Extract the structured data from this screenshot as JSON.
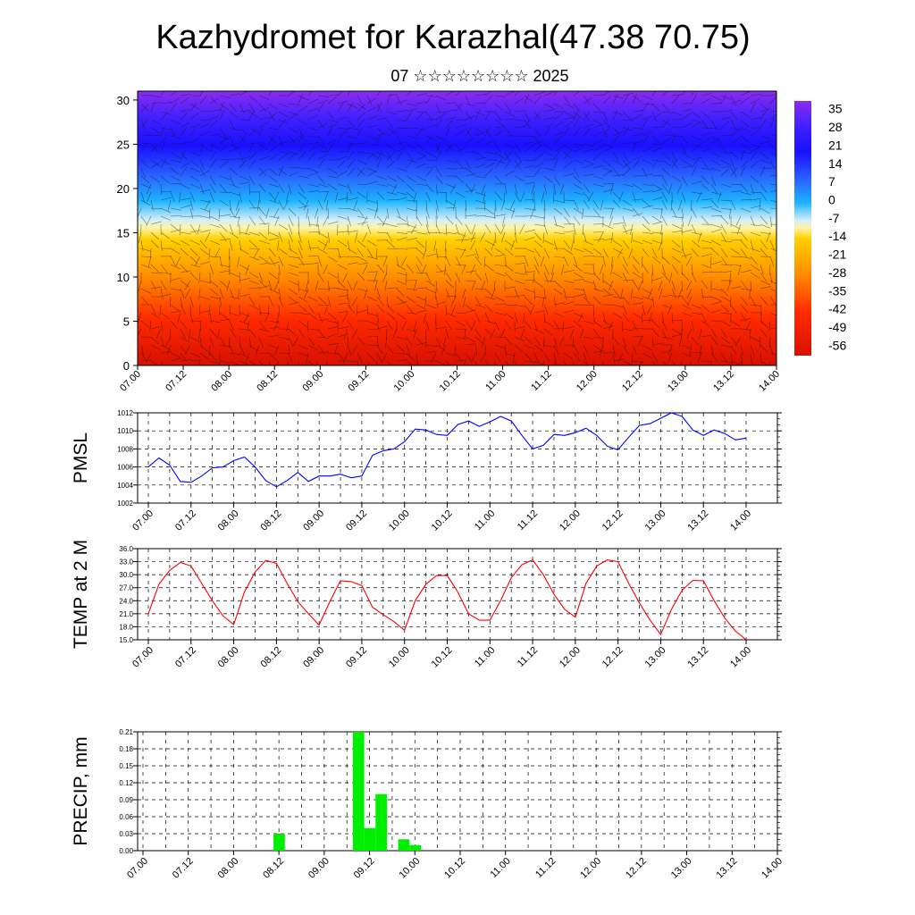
{
  "header": {
    "title": "Kazhydromet for Karazhal(47.38 70.75)",
    "subtitle": "07 ☆☆☆☆☆☆☆☆ 2025"
  },
  "chart_data": [
    {
      "type": "heatmap",
      "name": "cross-section",
      "y_ticks": [
        "0",
        "5",
        "10",
        "15",
        "20",
        "25",
        "30"
      ],
      "ylim": [
        0,
        31
      ],
      "x_ticks": [
        "07.00",
        "07.12",
        "08.00",
        "08.12",
        "09.00",
        "09.12",
        "10.00",
        "10.12",
        "11.00",
        "11.12",
        "12.00",
        "12.12",
        "13.00",
        "13.12",
        "14.00"
      ],
      "colorbar_labels": [
        "35",
        "28",
        "21",
        "14",
        "7",
        "0",
        "-7",
        "-14",
        "-21",
        "-28",
        "-35",
        "-42",
        "-49",
        "-56"
      ],
      "colorbar_range": [
        -60,
        38
      ],
      "overlay": "wind vectors"
    },
    {
      "type": "line",
      "name": "pmsl",
      "ylabel": "PMSL",
      "y_ticks": [
        "1012",
        "1010",
        "1008",
        "1006",
        "1004",
        "1002"
      ],
      "ylim": [
        1002,
        1012
      ],
      "x_ticks": [
        "07.00",
        "07.12",
        "08.00",
        "08.12",
        "09.00",
        "09.12",
        "10.00",
        "10.12",
        "11.00",
        "11.12",
        "12.00",
        "12.12",
        "13.00",
        "13.12",
        "14.00"
      ],
      "series": [
        {
          "color": "#0000ff",
          "values": [
            1006.0,
            1007.0,
            1006.2,
            1004.4,
            1004.3,
            1005.0,
            1005.9,
            1006.0,
            1006.7,
            1007.1,
            1006.0,
            1004.5,
            1003.8,
            1004.5,
            1005.4,
            1004.4,
            1005.0,
            1005.0,
            1005.2,
            1004.8,
            1005.0,
            1007.3,
            1007.8,
            1008.0,
            1008.8,
            1010.2,
            1010.1,
            1009.6,
            1009.5,
            1010.7,
            1011.1,
            1010.5,
            1011.0,
            1011.6,
            1011.1,
            1009.5,
            1008.0,
            1008.4,
            1009.6,
            1009.5,
            1009.8,
            1010.3,
            1009.5,
            1008.3,
            1007.9,
            1009.3,
            1010.6,
            1010.8,
            1011.4,
            1012.0,
            1011.6,
            1010.1,
            1009.5,
            1010.1,
            1009.7,
            1009.0,
            1009.2
          ]
        }
      ]
    },
    {
      "type": "line",
      "name": "temp",
      "ylabel": "TEMP at 2 M",
      "y_ticks": [
        "36.0",
        "33.0",
        "30.0",
        "27.0",
        "24.0",
        "21.0",
        "18.0",
        "15.0"
      ],
      "ylim": [
        15,
        36
      ],
      "x_ticks": [
        "07.00",
        "07.12",
        "08.00",
        "08.12",
        "09.00",
        "09.12",
        "10.00",
        "10.12",
        "11.00",
        "11.12",
        "12.00",
        "12.12",
        "13.00",
        "13.12",
        "14.00"
      ],
      "series": [
        {
          "color": "#ff0000",
          "values": [
            21.0,
            27.8,
            31.0,
            32.8,
            32.0,
            28.0,
            24.0,
            20.5,
            18.5,
            26.0,
            30.6,
            33.3,
            32.6,
            28.0,
            23.8,
            21.0,
            18.4,
            23.8,
            28.6,
            28.4,
            27.5,
            22.5,
            20.8,
            19.2,
            17.2,
            24.0,
            27.8,
            29.8,
            29.8,
            26.0,
            21.0,
            19.5,
            19.5,
            24.0,
            29.3,
            32.3,
            33.4,
            30.0,
            25.5,
            22.0,
            20.2,
            28.0,
            32.0,
            33.4,
            33.0,
            28.0,
            23.5,
            19.5,
            16.2,
            22.0,
            26.4,
            28.7,
            28.6,
            24.0,
            20.0,
            17.0,
            15.0
          ]
        }
      ]
    },
    {
      "type": "bar",
      "name": "precip",
      "ylabel": "PRECIP, mm",
      "y_ticks": [
        "0.21",
        "0.18",
        "0.15",
        "0.12",
        "0.09",
        "0.06",
        "0.03",
        "0.00"
      ],
      "ylim": [
        0,
        0.21
      ],
      "x_ticks": [
        "07.00",
        "07.12",
        "08.00",
        "08.12",
        "09.00",
        "09.12",
        "10.00",
        "10.12",
        "11.00",
        "11.12",
        "12.00",
        "12.12",
        "13.00",
        "13.12",
        "14.00"
      ],
      "color": "#00ee00",
      "values": [
        0,
        0,
        0,
        0,
        0,
        0,
        0,
        0,
        0,
        0,
        0,
        0,
        0.03,
        0,
        0,
        0,
        0,
        0,
        0,
        0.21,
        0.04,
        0.1,
        0,
        0.02,
        0.01,
        0,
        0,
        0,
        0,
        0,
        0,
        0,
        0,
        0,
        0,
        0,
        0,
        0,
        0,
        0,
        0,
        0,
        0,
        0,
        0,
        0,
        0,
        0,
        0,
        0,
        0,
        0,
        0,
        0,
        0,
        0,
        0
      ]
    }
  ]
}
